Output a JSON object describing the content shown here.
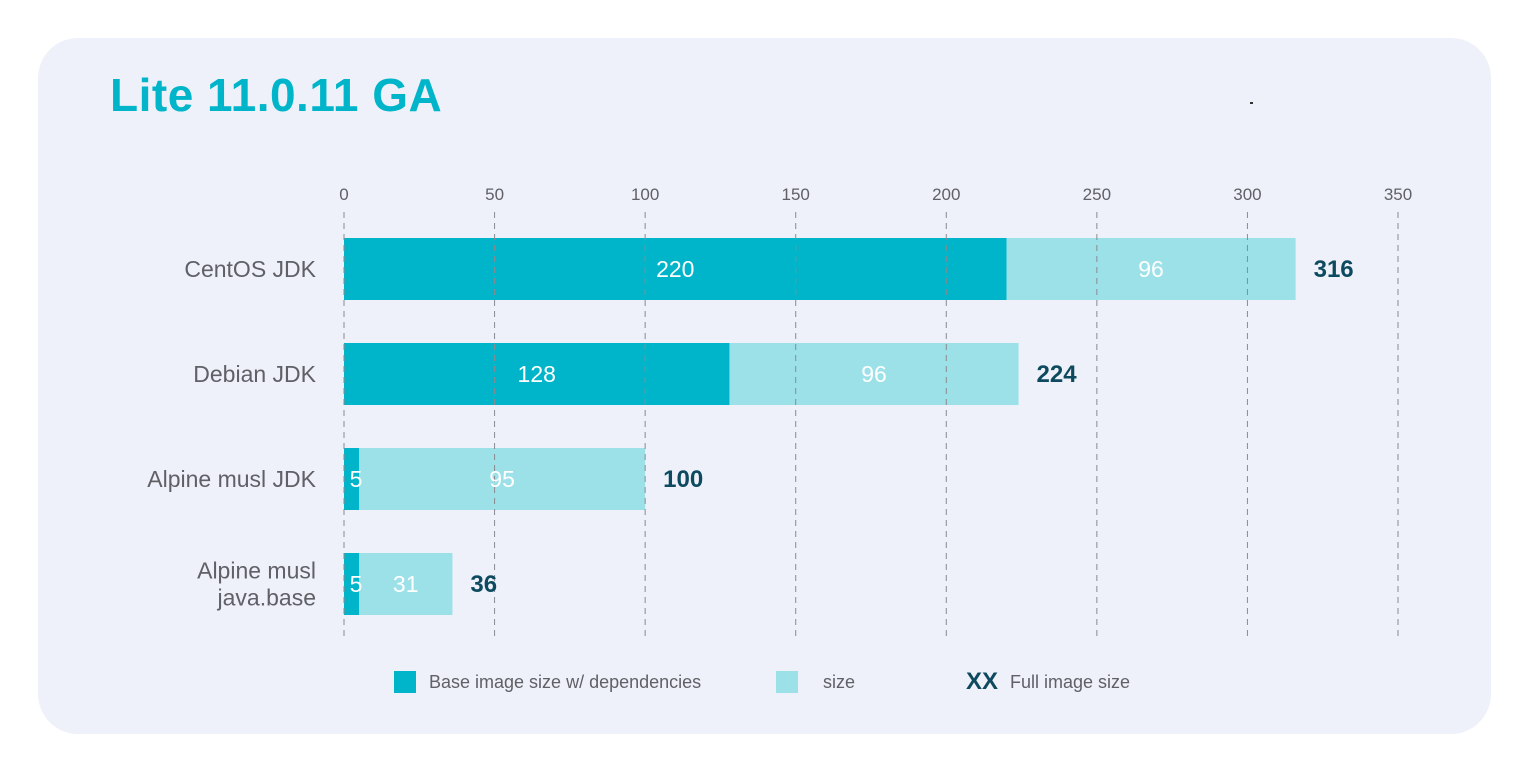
{
  "title": "Lite 11.0.11 GA",
  "colors": {
    "title": "#00b5c9",
    "base": "#00b5c9",
    "size": "#9ce1e8",
    "total_label": "#0d4a5f",
    "axis_text": "#606066",
    "grid": "#8a8a90",
    "card_bg": "#eef1f9"
  },
  "legend": {
    "base_label": "Base image size w/ dependencies",
    "size_label": "size",
    "full_marker": "XX",
    "full_label": "Full image size"
  },
  "chart_data": {
    "type": "bar",
    "orientation": "horizontal",
    "stacked": true,
    "title": "Lite 11.0.11 GA",
    "xlabel": "",
    "ylabel": "",
    "xlim": [
      0,
      350
    ],
    "x_ticks": [
      0,
      50,
      100,
      150,
      200,
      250,
      300,
      350
    ],
    "x_tick_labels": [
      "0",
      "50",
      "100",
      "150",
      "200",
      "250",
      "300",
      "350"
    ],
    "axis_position": "top",
    "grid": "vertical dashed",
    "legend_position": "bottom",
    "categories": [
      "CentOS JDK",
      "Debian JDK",
      "Alpine musl JDK",
      "Alpine musl java.base"
    ],
    "category_lines": [
      [
        "CentOS JDK"
      ],
      [
        "Debian JDK"
      ],
      [
        "Alpine musl JDK"
      ],
      [
        "Alpine musl",
        "java.base"
      ]
    ],
    "series": [
      {
        "name": "Base image size w/ dependencies",
        "values": [
          220,
          128,
          5,
          5
        ]
      },
      {
        "name": "size",
        "values": [
          96,
          96,
          95,
          31
        ]
      }
    ],
    "totals": [
      316,
      224,
      100,
      36
    ],
    "total_series_name": "Full image size"
  }
}
